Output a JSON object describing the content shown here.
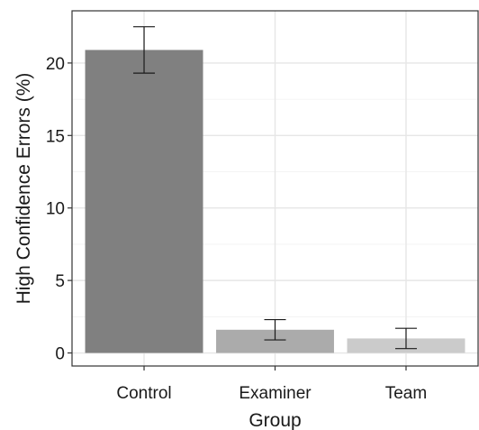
{
  "chart_data": {
    "type": "bar",
    "title": "",
    "xlabel": "Group",
    "ylabel": "High Confidence Errors (%)",
    "categories": [
      "Control",
      "Examiner",
      "Team"
    ],
    "values": [
      20.9,
      1.6,
      1.0
    ],
    "error_low": [
      19.3,
      0.9,
      0.3
    ],
    "error_high": [
      22.5,
      2.3,
      1.7
    ],
    "bar_colors": [
      "#808080",
      "#ababab",
      "#cbcbcb"
    ],
    "ylim": [
      -0.9,
      23.6
    ],
    "yticks": [
      0,
      5,
      10,
      15,
      20
    ],
    "ytick_labels": [
      "0",
      "5",
      "10",
      "15",
      "20"
    ],
    "grid": true,
    "legend": "none"
  }
}
